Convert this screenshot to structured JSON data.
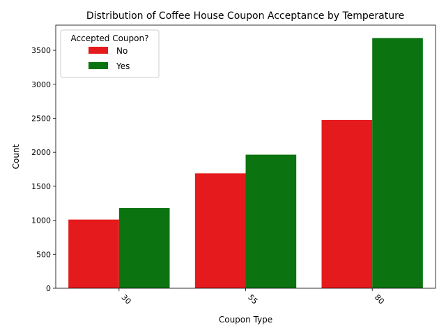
{
  "chart_data": {
    "type": "bar",
    "title": "Distribution of Coffee House Coupon Acceptance by Temperature",
    "xlabel": "Coupon Type",
    "ylabel": "Count",
    "categories": [
      "30",
      "55",
      "80"
    ],
    "series": [
      {
        "name": "No",
        "color": "#e41a1c",
        "values": [
          1010,
          1690,
          2475
        ]
      },
      {
        "name": "Yes",
        "color": "#0c7311",
        "values": [
          1180,
          1965,
          3680
        ]
      }
    ],
    "ylim": [
      0,
      3870
    ],
    "yticks": [
      0,
      500,
      1000,
      1500,
      2000,
      2500,
      3000,
      3500
    ],
    "ytick_labels": [
      "0",
      "500",
      "1000",
      "1500",
      "2000",
      "2500",
      "3000",
      "3500"
    ],
    "legend": {
      "title": "Accepted Coupon?",
      "placement": "top-left"
    },
    "grid": false
  }
}
